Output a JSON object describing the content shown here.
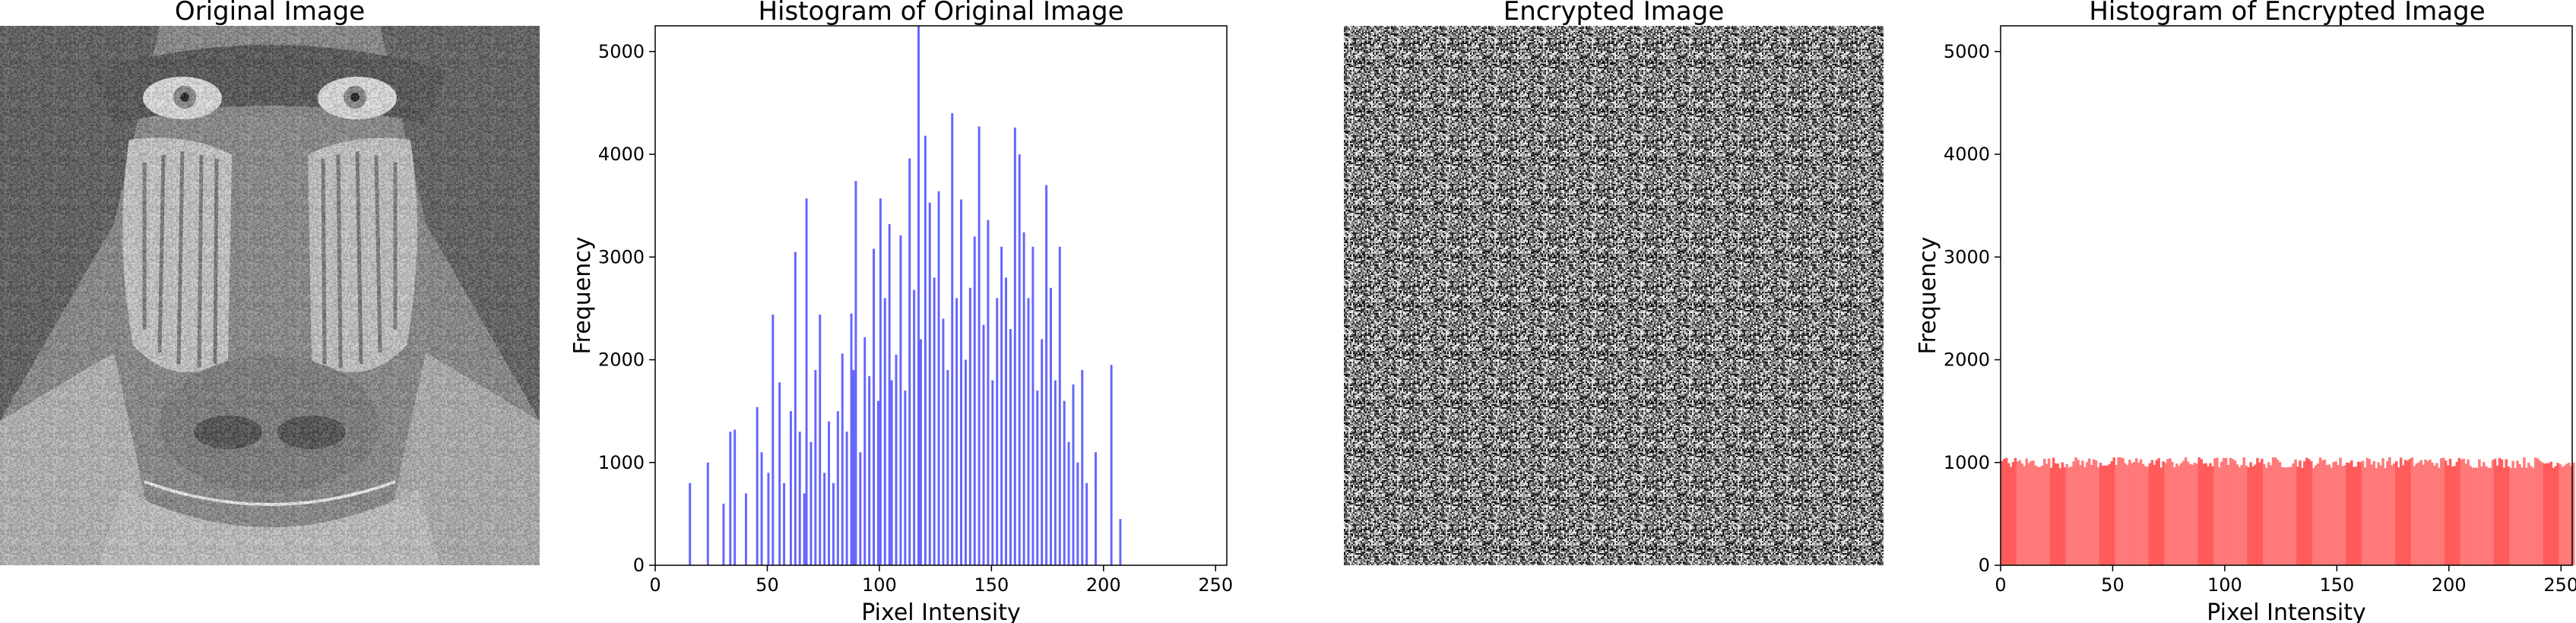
{
  "panels": {
    "original_image": {
      "title": "Original Image"
    },
    "encrypted_image": {
      "title": "Encrypted Image"
    }
  },
  "colors": {
    "original_hist": "#4a4aff",
    "original_hist_fill": "#8f8fff",
    "encrypted_hist": "#ff6e6e",
    "encrypted_hist_dark": "#ff4c4c"
  },
  "chart_data": [
    {
      "type": "bar",
      "title": "Histogram of Original Image",
      "xlabel": "Pixel Intensity",
      "ylabel": "Frequency",
      "xlim": [
        0,
        255
      ],
      "ylim": [
        0,
        5250
      ],
      "xticks": [
        0,
        50,
        100,
        150,
        200,
        250
      ],
      "yticks": [
        0,
        1000,
        2000,
        3000,
        4000,
        5000
      ],
      "grid": false,
      "values": [
        {
          "x": 15,
          "y": 800
        },
        {
          "x": 23,
          "y": 1000
        },
        {
          "x": 30,
          "y": 600
        },
        {
          "x": 33,
          "y": 1300
        },
        {
          "x": 35,
          "y": 1320
        },
        {
          "x": 40,
          "y": 700
        },
        {
          "x": 45,
          "y": 1540
        },
        {
          "x": 47,
          "y": 1100
        },
        {
          "x": 50,
          "y": 900
        },
        {
          "x": 52,
          "y": 2440
        },
        {
          "x": 55,
          "y": 1780
        },
        {
          "x": 57,
          "y": 800
        },
        {
          "x": 60,
          "y": 1500
        },
        {
          "x": 62,
          "y": 3050
        },
        {
          "x": 64,
          "y": 1300
        },
        {
          "x": 66,
          "y": 700
        },
        {
          "x": 67,
          "y": 3570
        },
        {
          "x": 69,
          "y": 1200
        },
        {
          "x": 71,
          "y": 1900
        },
        {
          "x": 73,
          "y": 2440
        },
        {
          "x": 75,
          "y": 900
        },
        {
          "x": 77,
          "y": 1400
        },
        {
          "x": 79,
          "y": 800
        },
        {
          "x": 81,
          "y": 1500
        },
        {
          "x": 83,
          "y": 2060
        },
        {
          "x": 85,
          "y": 1300
        },
        {
          "x": 87,
          "y": 2450
        },
        {
          "x": 88,
          "y": 1900
        },
        {
          "x": 89,
          "y": 3740
        },
        {
          "x": 91,
          "y": 1100
        },
        {
          "x": 93,
          "y": 2220
        },
        {
          "x": 95,
          "y": 1840
        },
        {
          "x": 97,
          "y": 3080
        },
        {
          "x": 99,
          "y": 1600
        },
        {
          "x": 100,
          "y": 3570
        },
        {
          "x": 102,
          "y": 2600
        },
        {
          "x": 104,
          "y": 3320
        },
        {
          "x": 105,
          "y": 1800
        },
        {
          "x": 107,
          "y": 2050
        },
        {
          "x": 109,
          "y": 3210
        },
        {
          "x": 111,
          "y": 1700
        },
        {
          "x": 113,
          "y": 3960
        },
        {
          "x": 115,
          "y": 2680
        },
        {
          "x": 117,
          "y": 5250
        },
        {
          "x": 118,
          "y": 2200
        },
        {
          "x": 120,
          "y": 4180
        },
        {
          "x": 122,
          "y": 3530
        },
        {
          "x": 124,
          "y": 2800
        },
        {
          "x": 126,
          "y": 3640
        },
        {
          "x": 128,
          "y": 2400
        },
        {
          "x": 130,
          "y": 1900
        },
        {
          "x": 132,
          "y": 4400
        },
        {
          "x": 134,
          "y": 2600
        },
        {
          "x": 136,
          "y": 3560
        },
        {
          "x": 138,
          "y": 2000
        },
        {
          "x": 140,
          "y": 2700
        },
        {
          "x": 142,
          "y": 3200
        },
        {
          "x": 144,
          "y": 4270
        },
        {
          "x": 146,
          "y": 2340
        },
        {
          "x": 148,
          "y": 3360
        },
        {
          "x": 150,
          "y": 1800
        },
        {
          "x": 152,
          "y": 2600
        },
        {
          "x": 154,
          "y": 3100
        },
        {
          "x": 156,
          "y": 2800
        },
        {
          "x": 158,
          "y": 2300
        },
        {
          "x": 160,
          "y": 4260
        },
        {
          "x": 162,
          "y": 4000
        },
        {
          "x": 164,
          "y": 3240
        },
        {
          "x": 166,
          "y": 2600
        },
        {
          "x": 168,
          "y": 3100
        },
        {
          "x": 170,
          "y": 1700
        },
        {
          "x": 172,
          "y": 2200
        },
        {
          "x": 174,
          "y": 3700
        },
        {
          "x": 176,
          "y": 2700
        },
        {
          "x": 178,
          "y": 1800
        },
        {
          "x": 180,
          "y": 3100
        },
        {
          "x": 182,
          "y": 1600
        },
        {
          "x": 184,
          "y": 1200
        },
        {
          "x": 186,
          "y": 1760
        },
        {
          "x": 188,
          "y": 1000
        },
        {
          "x": 190,
          "y": 1900
        },
        {
          "x": 192,
          "y": 800
        },
        {
          "x": 196,
          "y": 1100
        },
        {
          "x": 203,
          "y": 1950
        },
        {
          "x": 207,
          "y": 450
        }
      ]
    },
    {
      "type": "bar",
      "title": "Histogram of Encrypted Image",
      "xlabel": "Pixel Intensity",
      "ylabel": "Frequency",
      "xlim": [
        0,
        255
      ],
      "ylim": [
        0,
        5250
      ],
      "xticks": [
        0,
        50,
        100,
        150,
        200,
        250
      ],
      "yticks": [
        0,
        1000,
        2000,
        3000,
        4000,
        5000
      ],
      "grid": false,
      "value_pattern": "roughly uniform, all 256 bins ~950-1080",
      "mean_value": 1000
    }
  ]
}
